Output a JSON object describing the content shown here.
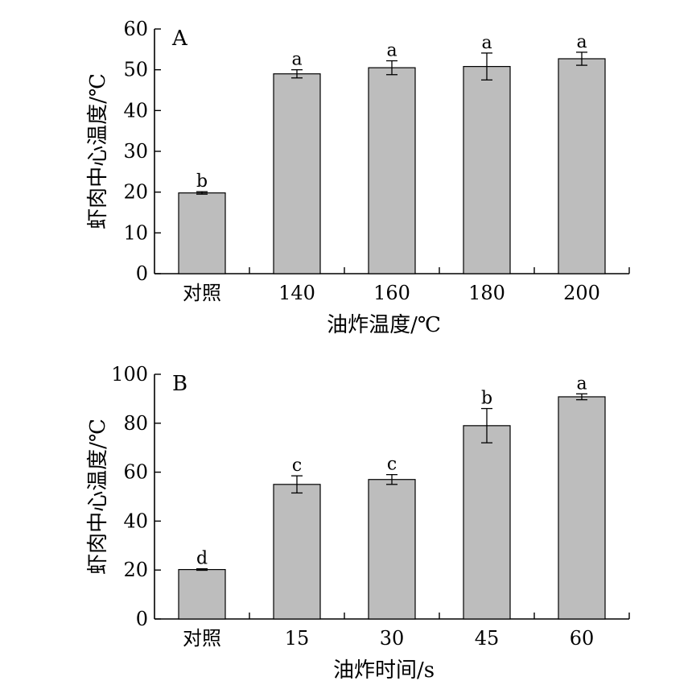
{
  "chart_data": [
    {
      "type": "bar",
      "panel_label": "A",
      "xlabel": "油炸温度/℃",
      "ylabel": "虾肉中心温度/℃",
      "categories": [
        "对照",
        "140",
        "160",
        "180",
        "200"
      ],
      "values": [
        19.8,
        49.0,
        50.5,
        50.8,
        52.7
      ],
      "errors": [
        0.3,
        1.0,
        1.7,
        3.3,
        1.6
      ],
      "significance": [
        "b",
        "a",
        "a",
        "a",
        "a"
      ],
      "ylim": [
        0,
        60
      ],
      "yticks": [
        0,
        10,
        20,
        30,
        40,
        50,
        60
      ],
      "bar_color": "#bdbdbd"
    },
    {
      "type": "bar",
      "panel_label": "B",
      "xlabel": "油炸时间/s",
      "ylabel": "虾肉中心温度/℃",
      "categories": [
        "对照",
        "15",
        "30",
        "45",
        "60"
      ],
      "values": [
        20.2,
        55.0,
        57.0,
        79.0,
        90.8
      ],
      "errors": [
        0.3,
        3.5,
        2.0,
        7.0,
        1.2
      ],
      "significance": [
        "d",
        "c",
        "c",
        "b",
        "a"
      ],
      "ylim": [
        0,
        100
      ],
      "yticks": [
        0,
        20,
        40,
        60,
        80,
        100
      ],
      "bar_color": "#bdbdbd"
    }
  ]
}
